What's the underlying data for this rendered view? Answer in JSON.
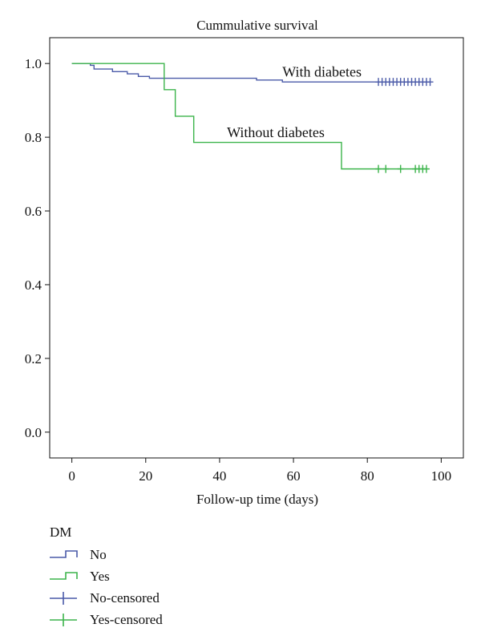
{
  "chart_data": {
    "type": "line",
    "title": "Cummulative survival",
    "xlabel": "Follow-up time (days)",
    "ylabel": "",
    "xlim": [
      -6,
      106
    ],
    "ylim": [
      -0.07,
      1.07
    ],
    "xticks": [
      0,
      20,
      40,
      60,
      80,
      100
    ],
    "yticks": [
      0.0,
      0.2,
      0.4,
      0.6,
      0.8,
      1.0
    ],
    "ytick_labels": [
      "0.0",
      "0.2",
      "0.4",
      "0.6",
      "0.8",
      "1.0"
    ],
    "grid": false,
    "legend_position": "bottom-left",
    "series": [
      {
        "name": "No",
        "color": "#4a5aa8",
        "step": [
          [
            0,
            1.0
          ],
          [
            5,
            0.995
          ],
          [
            6,
            0.985
          ],
          [
            11,
            0.978
          ],
          [
            15,
            0.972
          ],
          [
            18,
            0.965
          ],
          [
            21,
            0.96
          ],
          [
            50,
            0.955
          ],
          [
            57,
            0.95
          ],
          [
            97,
            0.95
          ]
        ],
        "censored_name": "No-censored",
        "censored_x": [
          83,
          84,
          85,
          86,
          87,
          88,
          89,
          90,
          91,
          92,
          93,
          94,
          95,
          96,
          97
        ]
      },
      {
        "name": "Yes",
        "color": "#3cb44b",
        "step": [
          [
            0,
            1.0
          ],
          [
            25,
            0.929
          ],
          [
            28,
            0.857
          ],
          [
            33,
            0.786
          ],
          [
            73,
            0.714
          ],
          [
            96,
            0.714
          ]
        ],
        "censored_name": "Yes-censored",
        "censored_x": [
          83,
          85,
          89,
          93,
          94,
          95,
          96
        ]
      }
    ],
    "annotations": [
      {
        "text": "With diabetes",
        "x": 57,
        "y": 0.965
      },
      {
        "text": "Without diabetes",
        "x": 42,
        "y": 0.8
      }
    ]
  },
  "legend": {
    "title": "DM",
    "items": [
      {
        "label": "No",
        "icon": "step-line-icon",
        "color": "#4a5aa8"
      },
      {
        "label": "Yes",
        "icon": "step-line-icon",
        "color": "#3cb44b"
      },
      {
        "label": "No-censored",
        "icon": "cross-icon",
        "color": "#4a5aa8"
      },
      {
        "label": "Yes-censored",
        "icon": "cross-icon",
        "color": "#3cb44b"
      }
    ]
  }
}
